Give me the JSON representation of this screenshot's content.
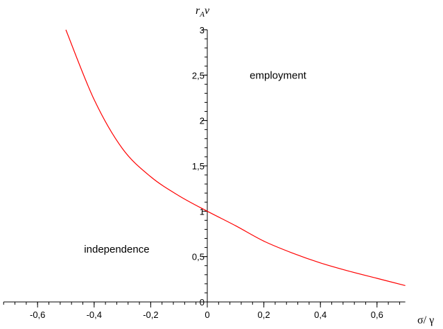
{
  "chart_data": {
    "type": "line",
    "xlabel": "σ/ γ",
    "ylabel_base": "r",
    "ylabel_sub": "A",
    "ylabel_tail": "v",
    "xlim": [
      -0.72,
      0.7
    ],
    "ylim": [
      0,
      3
    ],
    "x_ticks": [
      -0.6,
      -0.4,
      -0.2,
      0,
      0.2,
      0.4,
      0.6
    ],
    "x_tick_labels": [
      "-0,6",
      "-0,4",
      "-0,2",
      "0",
      "0,2",
      "0,4",
      "0,6"
    ],
    "y_ticks": [
      0,
      0.5,
      1,
      1.5,
      2,
      2.5,
      3
    ],
    "y_tick_labels": [
      "0",
      "0,5",
      "1",
      "1,5",
      "2",
      "2,5",
      "3"
    ],
    "grid": false,
    "annotations": [
      {
        "text": "employment",
        "x": 0.25,
        "y": 2.5
      },
      {
        "text": "independence",
        "x": -0.32,
        "y": 0.58
      }
    ],
    "series": [
      {
        "color": "#ff0000",
        "x": [
          -0.5,
          -0.4,
          -0.3,
          -0.2,
          -0.1,
          0,
          0.1,
          0.2,
          0.3,
          0.4,
          0.5,
          0.6,
          0.7
        ],
        "y": [
          3.0,
          2.23,
          1.69,
          1.38,
          1.17,
          1.0,
          0.84,
          0.67,
          0.54,
          0.43,
          0.34,
          0.26,
          0.18
        ]
      }
    ]
  }
}
